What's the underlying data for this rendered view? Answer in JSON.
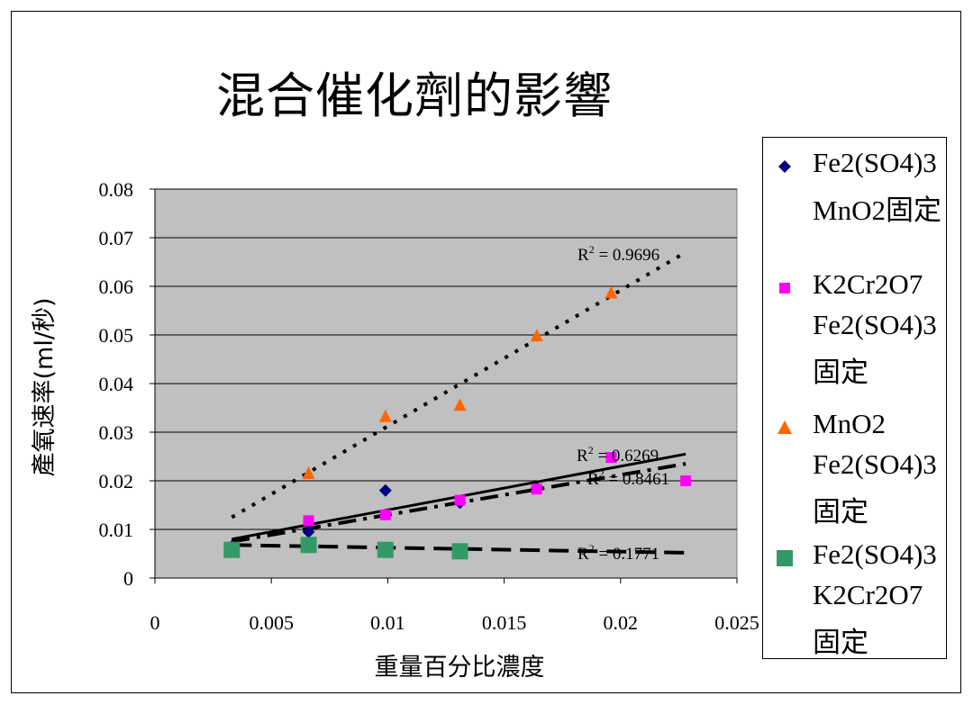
{
  "chart_data": {
    "type": "scatter",
    "title": "混合催化劑的影響",
    "xlabel": "重量百分比濃度",
    "ylabel": "產氧速率(ml/秒)",
    "xlim": [
      0,
      0.025
    ],
    "ylim": [
      0,
      0.08
    ],
    "x_ticks": [
      "0",
      "0.005",
      "0.01",
      "0.015",
      "0.02",
      "0.025"
    ],
    "y_ticks": [
      "0",
      "0.01",
      "0.02",
      "0.03",
      "0.04",
      "0.05",
      "0.06",
      "0.07",
      "0.08"
    ],
    "grid": "horizontal",
    "legend_position": "right",
    "plot_background": "#c0c0c0",
    "series": [
      {
        "name_lines": [
          "Fe2(SO4)3",
          "MnO2固定"
        ],
        "marker": "diamond",
        "color": "#000080",
        "x": [
          0.0033,
          0.0066,
          0.0099,
          0.0131,
          0.0164
        ],
        "y": [
          0.0065,
          0.0095,
          0.018,
          0.0155,
          0.0185
        ],
        "trend": {
          "style": "solid",
          "x0": 0.0033,
          "y0": 0.008,
          "x1": 0.0228,
          "y1": 0.0255
        },
        "r2_label": "= 0.6269"
      },
      {
        "name_lines": [
          "K2Cr2O7",
          "Fe2(SO4)3",
          "固定"
        ],
        "marker": "square",
        "color": "#ff00ff",
        "x": [
          0.0066,
          0.0099,
          0.0131,
          0.0164,
          0.0196,
          0.0228
        ],
        "y": [
          0.0118,
          0.013,
          0.016,
          0.0183,
          0.0248,
          0.02
        ],
        "trend": {
          "style": "dashdot",
          "x0": 0.0033,
          "y0": 0.0075,
          "x1": 0.0228,
          "y1": 0.0235
        },
        "r2_label": "= 0.8461"
      },
      {
        "name_lines": [
          "MnO2",
          "Fe2(SO4)3",
          "固定"
        ],
        "marker": "triangle",
        "color": "#ff6600",
        "x": [
          0.0066,
          0.0099,
          0.0131,
          0.0164,
          0.0196
        ],
        "y": [
          0.0215,
          0.0332,
          0.0355,
          0.0498,
          0.0586
        ],
        "trend": {
          "style": "dotted",
          "x0": 0.0033,
          "y0": 0.0125,
          "x1": 0.0228,
          "y1": 0.067
        },
        "r2_label": "= 0.9696"
      },
      {
        "name_lines": [
          "Fe2(SO4)3",
          "K2Cr2O7",
          "固定"
        ],
        "marker": "bigsquare",
        "color": "#339966",
        "x": [
          0.0033,
          0.0066,
          0.0099,
          0.0131
        ],
        "y": [
          0.0058,
          0.0068,
          0.0058,
          0.0055
        ],
        "trend": {
          "style": "dashed",
          "x0": 0.0033,
          "y0": 0.0068,
          "x1": 0.0228,
          "y1": 0.0052
        },
        "r2_label": "= 0.1771"
      }
    ],
    "r2_prefix": "R",
    "r2_sup": "2"
  }
}
